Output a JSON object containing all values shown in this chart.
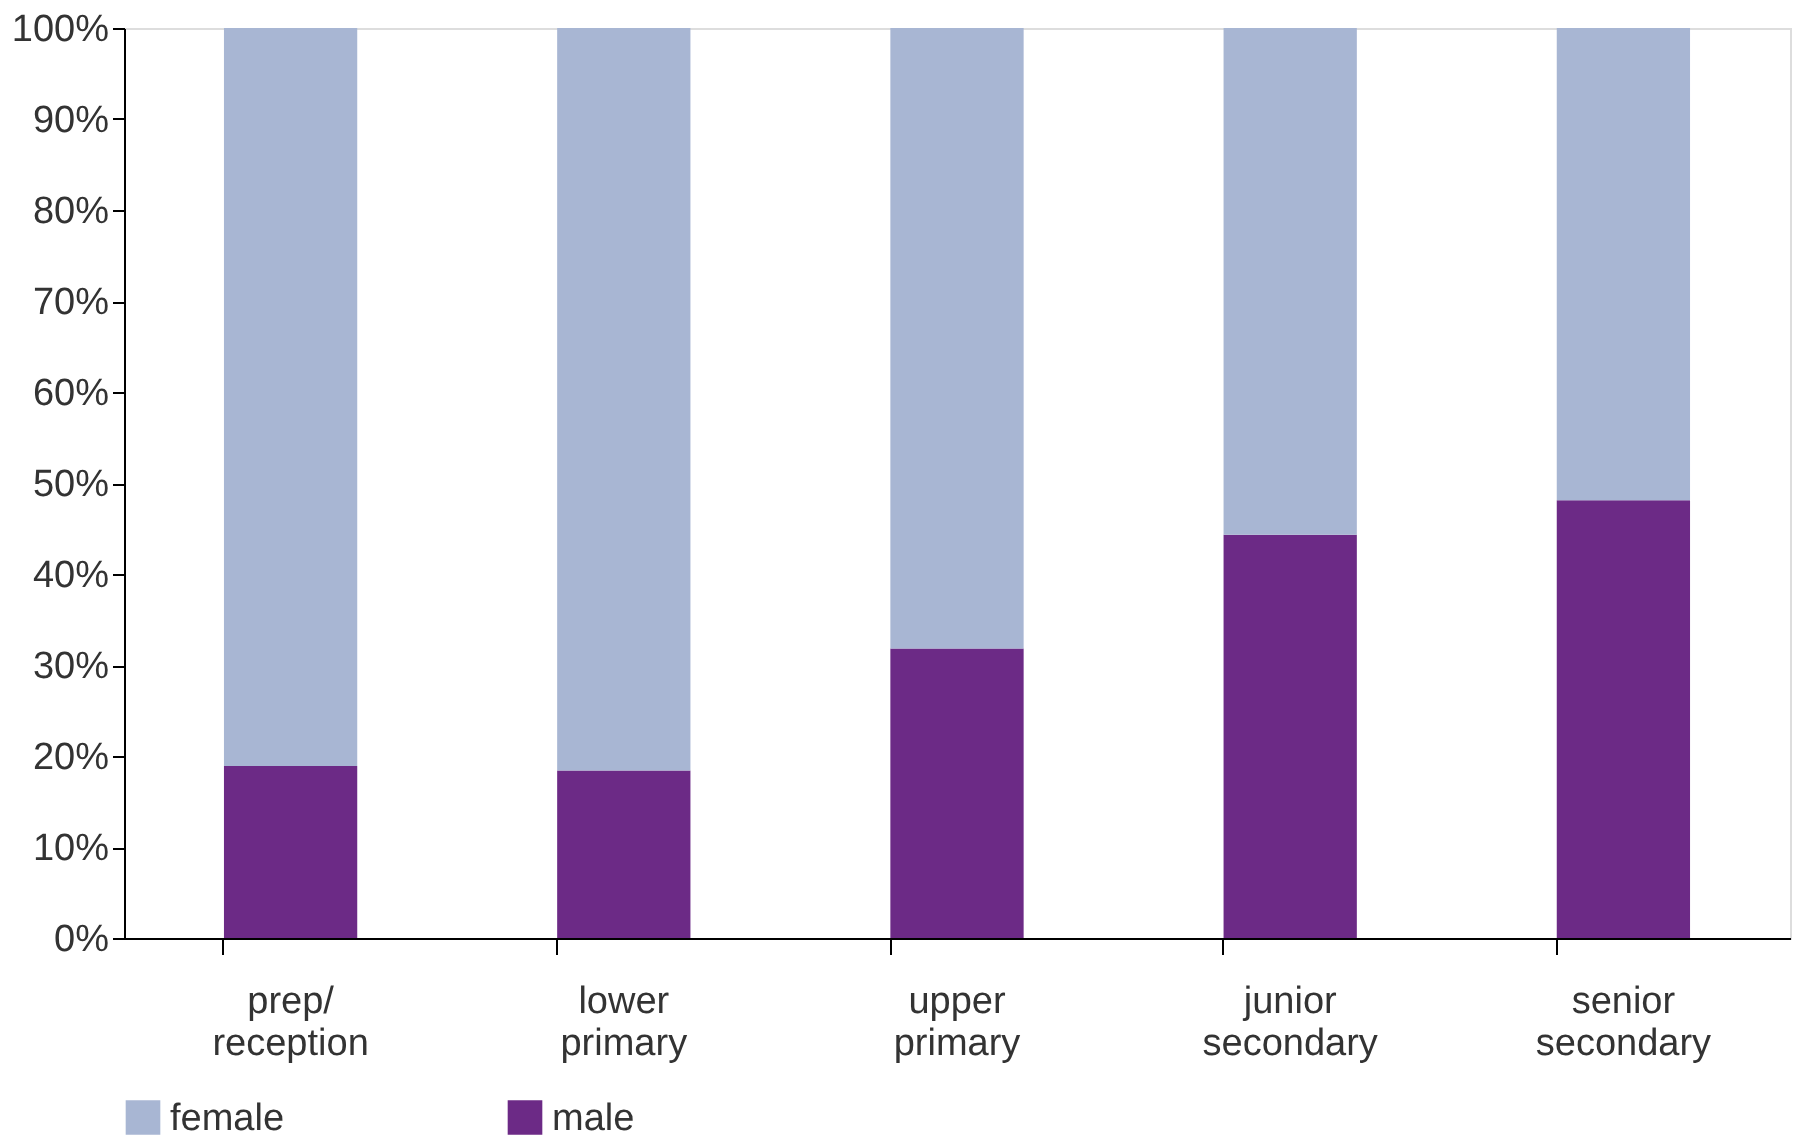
{
  "chart_data": {
    "type": "bar",
    "stacked": true,
    "categories": [
      "prep/\nreception",
      "lower\nprimary",
      "upper\nprimary",
      "junior\nsecondary",
      "senior\nsecondary"
    ],
    "series": [
      {
        "name": "male",
        "color": "#6c2a86",
        "values": [
          18.9,
          18.4,
          31.8,
          44.3,
          48.1
        ]
      },
      {
        "name": "female",
        "color": "#a8b6d3",
        "values": [
          81.1,
          81.6,
          68.2,
          55.7,
          51.9
        ]
      }
    ],
    "ylim": [
      0,
      100
    ],
    "yticks": [
      {
        "value": 0,
        "label": "0%"
      },
      {
        "value": 10,
        "label": "10%"
      },
      {
        "value": 20,
        "label": "20%"
      },
      {
        "value": 30,
        "label": "30%"
      },
      {
        "value": 40,
        "label": "40%"
      },
      {
        "value": 50,
        "label": "50%"
      },
      {
        "value": 60,
        "label": "60%"
      },
      {
        "value": 70,
        "label": "70%"
      },
      {
        "value": 80,
        "label": "80%"
      },
      {
        "value": 90,
        "label": "90%"
      },
      {
        "value": 100,
        "label": "100%"
      }
    ],
    "grid": false,
    "legend": "bottom"
  }
}
